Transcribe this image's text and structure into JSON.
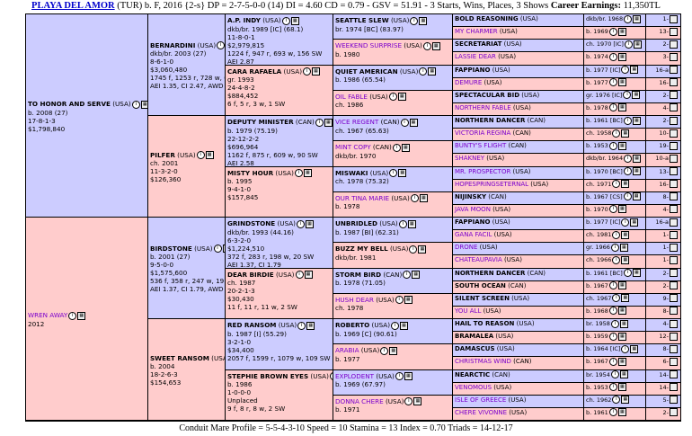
{
  "header": {
    "name": "PLAYA DEL AMOR",
    "info": " (TUR) b. F, 2016 {2-s} DP = 2-7-5-0-0 (14) DI = 4.60 CD = 0.79 - GSV = 51.91 - 3 Starts, Wins, Places, 3 Shows ",
    "earnings_label": "Career Earnings:",
    "earnings_value": " 11,350TL"
  },
  "footer": "Conduit Mare Profile = 5-5-4-3-10  Speed = 10  Stamina = 13  Index = 0.70  Triads = 14-12-17",
  "gen1": [
    {
      "name": "TO HONOR AND SERVE",
      "suffix": " (USA)",
      "lines": [
        "b. 2008 (27)",
        "17-8-1-3",
        "$1,798,840"
      ]
    },
    {
      "name": "WREN AWAY",
      "suffix": "",
      "lines": [
        "2012"
      ]
    }
  ],
  "gen2": [
    {
      "name": "BERNARDINI",
      "suffix": " (USA)",
      "lines": [
        "dkb/br. 2003 (27)",
        "8-6-1-0",
        "$3,060,480",
        "1745 f, 1253 r, 728 w, 69 SW",
        "AEI 1.35, CI 2.47, AWD 7.52"
      ]
    },
    {
      "name": "PILFER",
      "suffix": " (USA)",
      "lines": [
        "ch. 2001",
        "11-3-2-0",
        "$126,360"
      ]
    },
    {
      "name": "BIRDSTONE",
      "suffix": " (USA)",
      "lines": [
        "b. 2001 (27)",
        "9-5-0-0",
        "$1,575,600",
        "536 f, 358 r, 247 w, 19 SW",
        "AEI 1.37, CI 1.79, AWD 7.55"
      ]
    },
    {
      "name": "SWEET RANSOM",
      "suffix": " (USA)",
      "lines": [
        "b. 2004",
        "18-2-6-3",
        "$154,653"
      ]
    }
  ],
  "gen3": [
    {
      "name": "A.P. INDY",
      "suffix": " (USA)",
      "lines": [
        "dkb/br. 1989 [IC] (68.1)",
        "11-8-0-1",
        "$2,979,815",
        "1224 f, 947 r, 693 w, 156 SW",
        "AEI 2.87"
      ]
    },
    {
      "name": "CARA RAFAELA",
      "suffix": " (USA)",
      "lines": [
        "gr. 1993",
        "24-4-8-2",
        "$884,452",
        "6 f, 5 r, 3 w, 1 SW"
      ]
    },
    {
      "name": "DEPUTY MINISTER",
      "suffix": " (CAN)",
      "lines": [
        "b. 1979 (75.19)",
        "22-12-2-2",
        "$696,964",
        "1162 f, 875 r, 609 w, 90 SW",
        "AEI 2.58",
        "Website"
      ]
    },
    {
      "name": "MISTY HOUR",
      "suffix": " (USA)",
      "lines": [
        "b. 1995",
        "9-4-1-0",
        "$157,845"
      ]
    },
    {
      "name": "GRINDSTONE",
      "suffix": " (USA)",
      "lines": [
        "dkb/br. 1993 (44.16)",
        "6-3-2-0",
        "$1,224,510",
        "372 f, 283 r, 198 w, 20 SW",
        "AEI 1.37, CI 1.79"
      ]
    },
    {
      "name": "DEAR BIRDIE",
      "suffix": " (USA)",
      "lines": [
        "ch. 1987",
        "20-2-1-3",
        "$30,430",
        "11 f, 11 r, 11 w, 2 SW"
      ]
    },
    {
      "name": "RED RANSOM",
      "suffix": " (USA)",
      "lines": [
        "b. 1987 [I] (55.29)",
        "3-2-1-0",
        "$34,400",
        "2057 f, 1599 r, 1079 w, 109 SW"
      ]
    },
    {
      "name": "STEPHIE BROWN EYES",
      "suffix": " (USA)",
      "lines": [
        "b. 1986",
        "1-0-0-0",
        "Unplaced",
        "9 f, 8 r, 8 w, 2 SW"
      ]
    }
  ],
  "gen4": [
    {
      "name": "SEATTLE SLEW",
      "suffix": " (USA)",
      "lines": [
        "br. 1974 [BC] (83.97)"
      ]
    },
    {
      "name": "WEEKEND SURPRISE",
      "suffix": " (USA)",
      "lines": [
        "b. 1980"
      ]
    },
    {
      "name": "QUIET AMERICAN",
      "suffix": " (USA)",
      "lines": [
        "b. 1986 (65.54)"
      ]
    },
    {
      "name": "OIL FABLE",
      "suffix": " (USA)",
      "lines": [
        "ch. 1986"
      ]
    },
    {
      "name": "VICE REGENT",
      "suffix": " (CAN)",
      "lines": [
        "ch. 1967 (65.63)"
      ]
    },
    {
      "name": "MINT COPY",
      "suffix": " (CAN)",
      "lines": [
        "dkb/br. 1970"
      ]
    },
    {
      "name": "MISWAKI",
      "suffix": " (USA)",
      "lines": [
        "ch. 1978 (75.32)"
      ]
    },
    {
      "name": "OUR TINA MARIE",
      "suffix": " (USA)",
      "lines": [
        "b. 1978"
      ]
    },
    {
      "name": "UNBRIDLED",
      "suffix": " (USA)",
      "lines": [
        "b. 1987 [BI] (62.31)"
      ]
    },
    {
      "name": "BUZZ MY BELL",
      "suffix": " (USA)",
      "lines": [
        "dkb/br. 1981"
      ]
    },
    {
      "name": "STORM BIRD",
      "suffix": " (CAN)",
      "lines": [
        "b. 1978 (71.05)"
      ]
    },
    {
      "name": "HUSH DEAR",
      "suffix": " (USA)",
      "lines": [
        "ch. 1978"
      ]
    },
    {
      "name": "ROBERTO",
      "suffix": " (USA)",
      "lines": [
        "b. 1969 [C] (90.61)"
      ]
    },
    {
      "name": "ARABIA",
      "suffix": " (USA)",
      "lines": [
        "b. 1977"
      ]
    },
    {
      "name": "EXPLODENT",
      "suffix": " (USA)",
      "lines": [
        "b. 1969 (67.97)"
      ]
    },
    {
      "name": "DONNA CHERE",
      "suffix": " (USA)",
      "lines": [
        "b. 1971"
      ]
    }
  ],
  "gen5": [
    {
      "name": "BOLD REASONING",
      "suffix": " (USA)",
      "info": "dkb/br. 1968",
      "code": "1-",
      "sex": "m",
      "bold": true
    },
    {
      "name": "MY CHARMER",
      "suffix": " (USA)",
      "info": "b. 1969",
      "code": "13-",
      "sex": "f",
      "bold": false
    },
    {
      "name": "SECRETARIAT",
      "suffix": " (USA)",
      "info": "ch. 1970 [IC]",
      "code": "2-",
      "sex": "m",
      "bold": true
    },
    {
      "name": "LASSIE DEAR",
      "suffix": " (USA)",
      "info": "b. 1974",
      "code": "3-",
      "sex": "f",
      "bold": false
    },
    {
      "name": "FAPPIANO",
      "suffix": " (USA)",
      "info": "b. 1977 [IC]",
      "code": "16-a",
      "sex": "m",
      "bold": true
    },
    {
      "name": "DEMURE",
      "suffix": " (USA)",
      "info": "b. 1977",
      "code": "16-",
      "sex": "f",
      "bold": false
    },
    {
      "name": "SPECTACULAR BID",
      "suffix": " (USA)",
      "info": "gr. 1976 [IC]",
      "code": "2-",
      "sex": "m",
      "bold": true
    },
    {
      "name": "NORTHERN FABLE",
      "suffix": " (USA)",
      "info": "b. 1978",
      "code": "4-",
      "sex": "f",
      "bold": false
    },
    {
      "name": "NORTHERN DANCER",
      "suffix": " (CAN)",
      "info": "b. 1961 [BC]",
      "code": "2-",
      "sex": "m",
      "bold": true
    },
    {
      "name": "VICTORIA REGINA",
      "suffix": " (CAN)",
      "info": "ch. 1958",
      "code": "10-",
      "sex": "f",
      "bold": false
    },
    {
      "name": "BUNTY'S FLIGHT",
      "suffix": " (CAN)",
      "info": "b. 1953",
      "code": "19-",
      "sex": "m",
      "bold": false
    },
    {
      "name": "SHAKNEY",
      "suffix": " (USA)",
      "info": "dkb/br. 1964",
      "code": "10-a",
      "sex": "f",
      "bold": false
    },
    {
      "name": "MR. PROSPECTOR",
      "suffix": " (USA)",
      "info": "b. 1970 [BC]",
      "code": "13-",
      "sex": "m",
      "bold": false
    },
    {
      "name": "HOPESPRINGSETERNAL",
      "suffix": " (USA)",
      "info": "ch. 1971",
      "code": "16-",
      "sex": "f",
      "bold": false
    },
    {
      "name": "NIJINSKY",
      "suffix": " (CAN)",
      "info": "b. 1967 [CS]",
      "code": "8-",
      "sex": "m",
      "bold": true
    },
    {
      "name": "JAVA MOON",
      "suffix": " (USA)",
      "info": "b. 1970",
      "code": "4-",
      "sex": "f",
      "bold": false
    },
    {
      "name": "FAPPIANO",
      "suffix": " (USA)",
      "info": "b. 1977 [IC]",
      "code": "16-a",
      "sex": "m",
      "bold": true
    },
    {
      "name": "GANA FACIL",
      "suffix": " (USA)",
      "info": "ch. 1981",
      "code": "1-",
      "sex": "f",
      "bold": false
    },
    {
      "name": "DRONE",
      "suffix": " (USA)",
      "info": "gr. 1966",
      "code": "1-",
      "sex": "m",
      "bold": false
    },
    {
      "name": "CHATEAUPAVIA",
      "suffix": " (USA)",
      "info": "ch. 1966",
      "code": "1-",
      "sex": "f",
      "bold": false
    },
    {
      "name": "NORTHERN DANCER",
      "suffix": " (CAN)",
      "info": "b. 1961 [BC]",
      "code": "2-",
      "sex": "m",
      "bold": true
    },
    {
      "name": "SOUTH OCEAN",
      "suffix": " (CAN)",
      "info": "b. 1967",
      "code": "2-",
      "sex": "f",
      "bold": true
    },
    {
      "name": "SILENT SCREEN",
      "suffix": " (USA)",
      "info": "ch. 1967",
      "code": "9-",
      "sex": "m",
      "bold": true
    },
    {
      "name": "YOU ALL",
      "suffix": " (USA)",
      "info": "b. 1968",
      "code": "8-",
      "sex": "f",
      "bold": false
    },
    {
      "name": "HAIL TO REASON",
      "suffix": " (USA)",
      "info": "br. 1958",
      "code": "4-",
      "sex": "m",
      "bold": true
    },
    {
      "name": "BRAMALEA",
      "suffix": " (USA)",
      "info": "b. 1959",
      "code": "12-",
      "sex": "f",
      "bold": true
    },
    {
      "name": "DAMASCUS",
      "suffix": " (USA)",
      "info": "b. 1964 [IC]",
      "code": "8-",
      "sex": "m",
      "bold": true
    },
    {
      "name": "CHRISTMAS WIND",
      "suffix": " (CAN)",
      "info": "b. 1967",
      "code": "6-",
      "sex": "f",
      "bold": false
    },
    {
      "name": "NEARCTIC",
      "suffix": " (CAN)",
      "info": "br. 1954",
      "code": "14-",
      "sex": "m",
      "bold": true
    },
    {
      "name": "VENOMOUS",
      "suffix": " (USA)",
      "info": "b. 1953",
      "code": "14-",
      "sex": "f",
      "bold": false
    },
    {
      "name": "ISLE OF GREECE",
      "suffix": " (USA)",
      "info": "ch. 1962",
      "code": "5-",
      "sex": "m",
      "bold": false
    },
    {
      "name": "CHERE VIVONNE",
      "suffix": " (USA)",
      "info": "b. 1961",
      "code": "2-",
      "sex": "f",
      "bold": false
    }
  ],
  "colors": {
    "male": "#ccccff",
    "female": "#ffcccc",
    "yellow": "#ffffcc",
    "link": "#7b00cc"
  }
}
